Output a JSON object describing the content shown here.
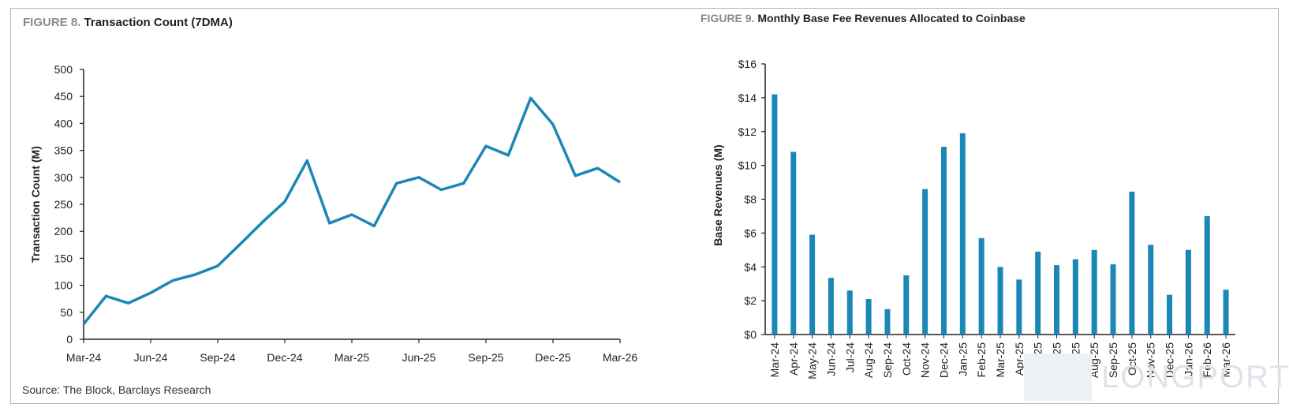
{
  "figure8": {
    "label": "FIGURE 8.",
    "title": "Transaction Count (7DMA)",
    "source": "Source: The Block, Barclays Research"
  },
  "figure9": {
    "label": "FIGURE 9.",
    "title": "Monthly Base Fee Revenues Allocated to Coinbase"
  },
  "watermark": "LONGPORT",
  "colors": {
    "series": "#1b87b6",
    "axis": "#222222"
  },
  "chart_data": [
    {
      "type": "line",
      "title": "Transaction Count (7DMA)",
      "ylabel": "Transaction Count (M)",
      "xlabel": "",
      "ylim": [
        0,
        500
      ],
      "yticks": [
        0,
        50,
        100,
        150,
        200,
        250,
        300,
        350,
        400,
        450,
        500
      ],
      "xtick_labels": [
        "Mar-24",
        "Jun-24",
        "Sep-24",
        "Dec-24",
        "Mar-25",
        "Jun-25",
        "Sep-25",
        "Dec-25",
        "Mar-26"
      ],
      "grid": false,
      "series": [
        {
          "x": [
            "2024-03",
            "2024-04",
            "2024-05",
            "2024-06",
            "2024-07",
            "2024-08",
            "2024-09",
            "2024-10",
            "2024-11",
            "2024-12",
            "2025-01",
            "2025-02",
            "2025-03",
            "2025-04",
            "2025-05",
            "2025-06",
            "2025-07",
            "2025-08",
            "2025-09",
            "2025-10",
            "2025-11",
            "2025-12",
            "2026-01",
            "2026-02",
            "2026-03"
          ],
          "values": [
            28,
            80,
            67,
            86,
            109,
            120,
            136,
            176,
            217,
            255,
            331,
            215,
            231,
            210,
            289,
            300,
            277,
            289,
            358,
            341,
            447,
            398,
            303,
            317,
            291
          ]
        }
      ]
    },
    {
      "type": "bar",
      "title": "Monthly Base Fee Revenues Allocated to Coinbase",
      "ylabel": "Base Revenues (M)",
      "xlabel": "",
      "ylim": [
        0,
        16
      ],
      "yticks": [
        "$0",
        "$2",
        "$4",
        "$6",
        "$8",
        "$10",
        "$12",
        "$14",
        "$16"
      ],
      "grid": false,
      "categories": [
        "Mar-24",
        "Apr-24",
        "May-24",
        "Jun-24",
        "Jul-24",
        "Aug-24",
        "Sep-24",
        "Oct-24",
        "Nov-24",
        "Dec-24",
        "Jan-25",
        "Feb-25",
        "Mar-25",
        "Apr-25",
        "May-25",
        "Jun-25",
        "Jul-25",
        "Aug-25",
        "Sep-25",
        "Oct-25",
        "Nov-25",
        "Dec-25",
        "Jan-26",
        "Feb-26",
        "Mar-26"
      ],
      "values": [
        14.2,
        10.8,
        5.9,
        3.35,
        2.6,
        2.1,
        1.5,
        3.5,
        8.6,
        11.1,
        11.9,
        5.7,
        4.0,
        3.25,
        4.9,
        4.1,
        4.45,
        5.0,
        4.15,
        8.45,
        5.3,
        2.35,
        5.0,
        7.0,
        2.65
      ]
    }
  ]
}
